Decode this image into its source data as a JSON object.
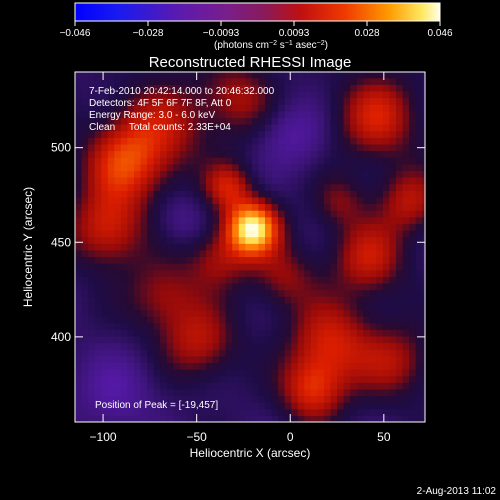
{
  "chart_data": {
    "type": "heatmap",
    "title": "Reconstructed RHESSI Image",
    "xlabel": "Heliocentric X (arcsec)",
    "ylabel": "Heliocentric Y (arcsec)",
    "xlim": [
      -115,
      72
    ],
    "ylim": [
      355,
      540
    ],
    "x_ticks": [
      -100,
      -50,
      0,
      50
    ],
    "y_ticks": [
      400,
      450,
      500
    ],
    "colorbar": {
      "ticks": [
        "−0.046",
        "−0.028",
        "−0.0093",
        "0.0093",
        "0.028",
        "0.046"
      ],
      "units_label": "(photons cm",
      "units_sup1": "−2",
      "units_mid": " s",
      "units_sup2": "−1",
      "units_mid2": " asec",
      "units_sup3": "−2",
      "units_end": ")",
      "min": -0.046,
      "max": 0.046
    },
    "annotations": [
      "7-Feb-2010 20:42:14.000 to 20:46:32.000",
      "Detectors: 4F 5F 6F 7F 8F, Att 0",
      "Energy Range: 3.0 - 6.0 keV",
      "Clean     Total counts: 2.33E+04"
    ],
    "peak_label": "Position of Peak = [-19,457]",
    "peak": {
      "x": -19,
      "y": 457,
      "value": 0.046
    },
    "emission_sources": [
      {
        "x": -22,
        "y": 456,
        "value": 0.046,
        "width_arcsec": 10
      },
      {
        "x": -35,
        "y": 478,
        "value": 0.02,
        "width_arcsec": 9
      },
      {
        "x": -40,
        "y": 440,
        "value": 0.016,
        "width_arcsec": 12
      },
      {
        "x": -90,
        "y": 490,
        "value": 0.024,
        "width_arcsec": 16
      },
      {
        "x": -100,
        "y": 455,
        "value": 0.022,
        "width_arcsec": 14
      },
      {
        "x": -70,
        "y": 420,
        "value": 0.016,
        "width_arcsec": 14
      },
      {
        "x": -70,
        "y": 510,
        "value": 0.016,
        "width_arcsec": 18
      },
      {
        "x": 45,
        "y": 515,
        "value": 0.022,
        "width_arcsec": 16
      },
      {
        "x": 62,
        "y": 470,
        "value": 0.018,
        "width_arcsec": 12
      },
      {
        "x": 40,
        "y": 440,
        "value": 0.02,
        "width_arcsec": 14
      },
      {
        "x": 20,
        "y": 395,
        "value": 0.022,
        "width_arcsec": 16
      },
      {
        "x": 55,
        "y": 385,
        "value": 0.016,
        "width_arcsec": 14
      },
      {
        "x": 10,
        "y": 370,
        "value": 0.022,
        "width_arcsec": 12
      },
      {
        "x": -50,
        "y": 395,
        "value": 0.018,
        "width_arcsec": 14
      },
      {
        "x": -30,
        "y": 525,
        "value": 0.016,
        "width_arcsec": 14
      },
      {
        "x": -5,
        "y": 430,
        "value": 0.014,
        "width_arcsec": 12
      },
      {
        "x": 25,
        "y": 470,
        "value": 0.012,
        "width_arcsec": 10
      },
      {
        "x": 0,
        "y": 505,
        "value": -0.012,
        "width_arcsec": 12
      },
      {
        "x": -60,
        "y": 460,
        "value": -0.008,
        "width_arcsec": 10
      },
      {
        "x": -95,
        "y": 370,
        "value": -0.012,
        "width_arcsec": 14
      }
    ],
    "grid": false,
    "legend": "none"
  },
  "footer": {
    "date": "2-Aug-2013 11:02"
  }
}
